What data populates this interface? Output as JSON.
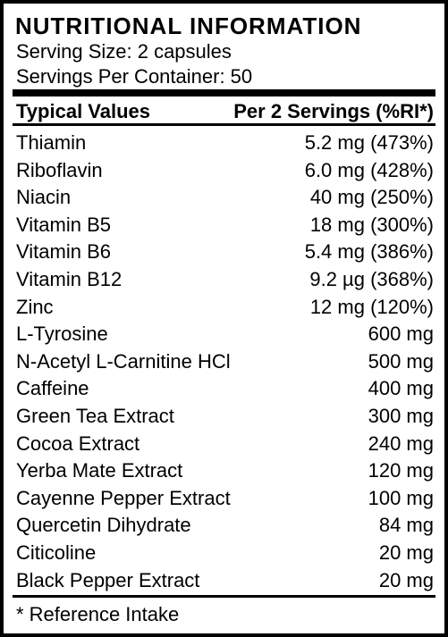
{
  "header": {
    "title": "NUTRITIONAL INFORMATION",
    "serving_size": "Serving Size: 2 capsules",
    "servings_per_container": "Servings Per Container: 50"
  },
  "table": {
    "columns": [
      "Typical Values",
      "Per 2 Servings (%RI*)"
    ],
    "rows": [
      [
        "Thiamin",
        "5.2 mg (473%)"
      ],
      [
        "Riboflavin",
        "6.0 mg (428%)"
      ],
      [
        "Niacin",
        "40 mg (250%)"
      ],
      [
        "Vitamin B5",
        "18 mg (300%)"
      ],
      [
        "Vitamin B6",
        "5.4 mg (386%)"
      ],
      [
        "Vitamin B12",
        "9.2 µg (368%)"
      ],
      [
        "Zinc",
        "12 mg (120%)"
      ],
      [
        "L-Tyrosine",
        "600 mg"
      ],
      [
        "N-Acetyl L-Carnitine HCl",
        "500 mg"
      ],
      [
        "Caffeine",
        "400 mg"
      ],
      [
        "Green Tea Extract",
        "300 mg"
      ],
      [
        "Cocoa Extract",
        "240 mg"
      ],
      [
        "Yerba Mate Extract",
        "120 mg"
      ],
      [
        "Cayenne Pepper Extract",
        "100 mg"
      ],
      [
        "Quercetin Dihydrate",
        "84 mg"
      ],
      [
        "Citicoline",
        "20 mg"
      ],
      [
        "Black Pepper Extract",
        "20 mg"
      ]
    ]
  },
  "footnote": "* Reference Intake"
}
